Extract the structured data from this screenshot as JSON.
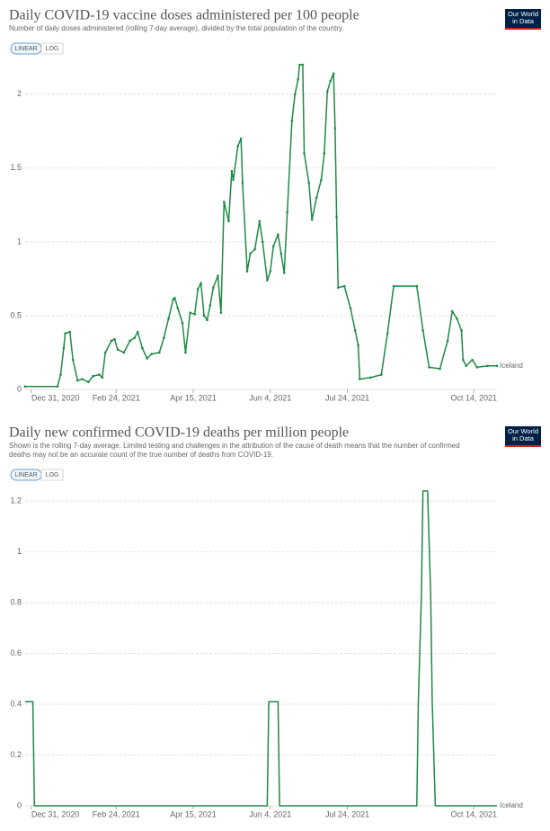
{
  "chart_data": [
    {
      "type": "line",
      "title": "Daily COVID-19 vaccine doses administered per 100 people",
      "subtitle": "Number of daily doses administered (rolling 7-day average), divided by the total population of the country.",
      "controls": [
        "LINEAR",
        "LOG"
      ],
      "log_scale": false,
      "grid": true,
      "markers": true,
      "x": [
        "2020-12-27",
        "2021-01-17",
        "2021-01-19",
        "2021-01-21",
        "2021-01-22",
        "2021-01-25",
        "2021-01-27",
        "2021-01-30",
        "2021-02-02",
        "2021-02-06",
        "2021-02-09",
        "2021-02-13",
        "2021-02-15",
        "2021-02-17",
        "2021-02-21",
        "2021-02-23",
        "2021-02-25",
        "2021-03-01",
        "2021-03-05",
        "2021-03-08",
        "2021-03-10",
        "2021-03-13",
        "2021-03-16",
        "2021-03-19",
        "2021-03-24",
        "2021-03-27",
        "2021-03-30",
        "2021-04-02",
        "2021-04-03",
        "2021-04-05",
        "2021-04-08",
        "2021-04-10",
        "2021-04-13",
        "2021-04-16",
        "2021-04-18",
        "2021-04-20",
        "2021-04-22",
        "2021-04-24",
        "2021-04-26",
        "2021-04-28",
        "2021-05-01",
        "2021-05-03",
        "2021-05-05",
        "2021-05-08",
        "2021-05-10",
        "2021-05-11",
        "2021-05-14",
        "2021-05-16",
        "2021-05-17",
        "2021-05-20",
        "2021-05-22",
        "2021-05-25",
        "2021-05-28",
        "2021-05-30",
        "2021-06-02",
        "2021-06-04",
        "2021-06-06",
        "2021-06-09",
        "2021-06-11",
        "2021-06-13",
        "2021-06-15",
        "2021-06-18",
        "2021-06-20",
        "2021-06-22",
        "2021-06-23",
        "2021-06-25",
        "2021-06-26",
        "2021-06-29",
        "2021-07-01",
        "2021-07-04",
        "2021-07-07",
        "2021-07-09",
        "2021-07-11",
        "2021-07-13",
        "2021-07-15",
        "2021-07-16",
        "2021-07-17",
        "2021-07-18",
        "2021-07-22",
        "2021-07-26",
        "2021-07-29",
        "2021-07-31",
        "2021-08-01",
        "2021-08-08",
        "2021-08-15",
        "2021-08-19",
        "2021-08-23",
        "2021-09-07",
        "2021-09-11",
        "2021-09-15",
        "2021-09-22",
        "2021-09-27",
        "2021-09-30",
        "2021-10-03",
        "2021-10-06",
        "2021-10-07",
        "2021-10-09",
        "2021-10-13",
        "2021-10-16",
        "2021-10-23",
        "2021-10-29"
      ],
      "series": [
        {
          "name": "Iceland",
          "color": "#1f8a43",
          "values": [
            0.02,
            0.02,
            0.1,
            0.28,
            0.38,
            0.39,
            0.2,
            0.06,
            0.07,
            0.05,
            0.09,
            0.1,
            0.08,
            0.25,
            0.33,
            0.34,
            0.27,
            0.25,
            0.33,
            0.35,
            0.39,
            0.28,
            0.21,
            0.24,
            0.25,
            0.35,
            0.48,
            0.61,
            0.62,
            0.55,
            0.45,
            0.25,
            0.52,
            0.51,
            0.68,
            0.72,
            0.5,
            0.47,
            0.57,
            0.69,
            0.77,
            0.52,
            1.27,
            1.14,
            1.48,
            1.42,
            1.65,
            1.7,
            1.4,
            0.8,
            0.92,
            0.95,
            1.14,
            1.0,
            0.74,
            0.8,
            0.97,
            1.05,
            0.92,
            0.79,
            1.2,
            1.82,
            2.0,
            2.1,
            2.2,
            2.2,
            1.6,
            1.4,
            1.15,
            1.3,
            1.42,
            1.6,
            2.02,
            2.09,
            2.14,
            1.77,
            1.17,
            0.69,
            0.7,
            0.55,
            0.4,
            0.3,
            0.07,
            0.08,
            0.1,
            0.38,
            0.7,
            0.7,
            0.4,
            0.15,
            0.14,
            0.33,
            0.53,
            0.48,
            0.4,
            0.2,
            0.16,
            0.2,
            0.15,
            0.16,
            0.16
          ]
        }
      ],
      "xlim": [
        "2020-12-27",
        "2021-10-29"
      ],
      "xticks": [
        {
          "value": "2020-12-31",
          "label": "Dec 31, 2020"
        },
        {
          "value": "2021-02-24",
          "label": "Feb 24, 2021"
        },
        {
          "value": "2021-04-15",
          "label": "Apr 15, 2021"
        },
        {
          "value": "2021-06-04",
          "label": "Jun 4, 2021"
        },
        {
          "value": "2021-07-24",
          "label": "Jul 24, 2021"
        },
        {
          "value": "2021-10-14",
          "label": "Oct 14, 2021"
        }
      ],
      "ylim": [
        0,
        2.2
      ],
      "yticks": [
        0,
        0.5,
        1,
        1.5,
        2
      ]
    },
    {
      "type": "line",
      "title": "Daily new confirmed COVID-19 deaths per million people",
      "subtitle": [
        "Shown is the rolling 7-day average. Limited testing and challenges in the attribution of the cause of death means that the number of confirmed",
        "deaths may not be an accurate count of the true number of deaths from COVID-19."
      ],
      "controls": [
        "LINEAR",
        "LOG"
      ],
      "log_scale": false,
      "grid": true,
      "markers": false,
      "x": [
        "2020-12-27",
        "2021-01-01",
        "2021-01-02",
        "2021-06-02",
        "2021-06-03",
        "2021-06-09",
        "2021-06-10",
        "2021-09-07",
        "2021-09-08",
        "2021-09-10",
        "2021-09-11",
        "2021-09-14",
        "2021-09-16",
        "2021-09-17",
        "2021-09-19",
        "2021-10-29"
      ],
      "series": [
        {
          "name": "Iceland",
          "color": "#1f8a43",
          "values": [
            0.41,
            0.41,
            0,
            0,
            0.41,
            0.41,
            0,
            0,
            0.41,
            0.83,
            1.24,
            1.24,
            0.83,
            0.41,
            0,
            0
          ]
        }
      ],
      "xlim": [
        "2020-12-27",
        "2021-10-29"
      ],
      "xticks": [
        {
          "value": "2020-12-31",
          "label": "Dec 31, 2020"
        },
        {
          "value": "2021-02-24",
          "label": "Feb 24, 2021"
        },
        {
          "value": "2021-04-15",
          "label": "Apr 15, 2021"
        },
        {
          "value": "2021-06-04",
          "label": "Jun 4, 2021"
        },
        {
          "value": "2021-07-24",
          "label": "Jul 24, 2021"
        },
        {
          "value": "2021-10-14",
          "label": "Oct 14, 2021"
        }
      ],
      "ylim": [
        0,
        1.25
      ],
      "yticks": [
        0,
        0.2,
        0.4,
        0.6,
        0.8,
        1,
        1.2
      ]
    }
  ],
  "logo": [
    "Our World",
    "in Data"
  ]
}
